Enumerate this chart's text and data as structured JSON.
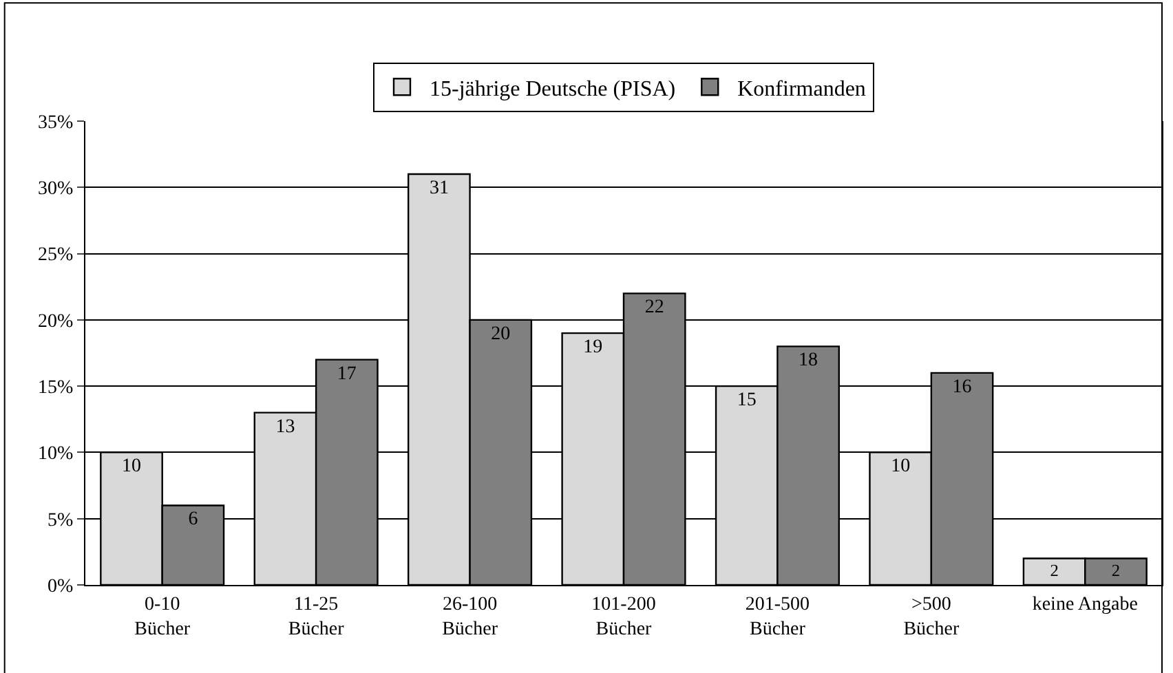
{
  "chart_data": {
    "type": "bar",
    "categories": [
      "0-10\nBücher",
      "11-25\nBücher",
      "26-100\nBücher",
      "101-200\nBücher",
      "201-500\nBücher",
      ">500\nBücher",
      "keine Angabe"
    ],
    "series": [
      {
        "name": "15-jährige Deutsche (PISA)",
        "color": "#d9d9d9",
        "values": [
          10,
          13,
          31,
          19,
          15,
          10,
          2
        ]
      },
      {
        "name": "Konfirmanden",
        "color": "#808080",
        "values": [
          6,
          17,
          20,
          22,
          18,
          16,
          2
        ]
      }
    ],
    "ylim": [
      0,
      35
    ],
    "yticks": [
      {
        "value": 0,
        "label": "0%"
      },
      {
        "value": 5,
        "label": "5%"
      },
      {
        "value": 10,
        "label": "10%"
      },
      {
        "value": 15,
        "label": "15%"
      },
      {
        "value": 20,
        "label": "20%"
      },
      {
        "value": 25,
        "label": "25%"
      },
      {
        "value": 30,
        "label": "30%"
      },
      {
        "value": 35,
        "label": "35%"
      }
    ],
    "grid": "y",
    "legend": "top",
    "data_labels": true
  }
}
